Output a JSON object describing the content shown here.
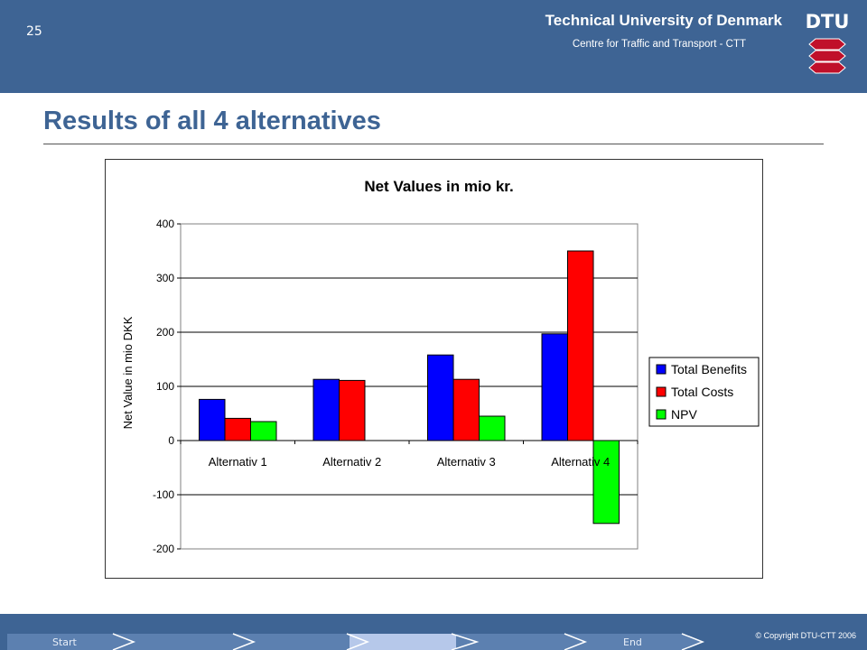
{
  "header": {
    "slide_number": "25",
    "university": "Technical University of Denmark",
    "centre": "Centre  for Traffic and Transport - CTT",
    "logo_text": "DTU"
  },
  "slide": {
    "title": "Results of all 4 alternatives"
  },
  "footer": {
    "start_label": "Start",
    "end_label": "End",
    "copyright": "© Copyright DTU-CTT 2006"
  },
  "colors": {
    "header": "#3e6494",
    "series": [
      "#0000ff",
      "#ff0000",
      "#00ff00"
    ]
  },
  "chart_data": {
    "type": "bar",
    "title": "Net Values in mio kr.",
    "xlabel": "",
    "ylabel": "Net Value in mio DKK",
    "categories": [
      "Alternativ 1",
      "Alternativ 2",
      "Alternativ 3",
      "Alternativ 4"
    ],
    "ylim": [
      -200,
      400
    ],
    "yticks": [
      -200,
      -100,
      0,
      100,
      200,
      300,
      400
    ],
    "grid": true,
    "legend_position": "right",
    "series": [
      {
        "name": "Total Benefits",
        "values": [
          76,
          113,
          158,
          197
        ]
      },
      {
        "name": "Total Costs",
        "values": [
          41,
          111,
          113,
          350
        ]
      },
      {
        "name": "NPV",
        "values": [
          35,
          0,
          45,
          -153
        ]
      }
    ]
  }
}
